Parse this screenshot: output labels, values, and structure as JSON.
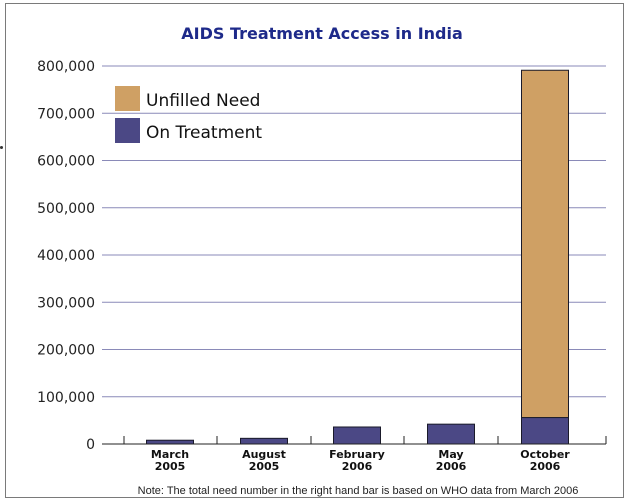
{
  "chart_data": {
    "type": "bar",
    "stacked": true,
    "title": "AIDS Treatment Access in India",
    "categories": [
      [
        "March",
        "2005"
      ],
      [
        "August",
        "2005"
      ],
      [
        "February",
        "2006"
      ],
      [
        "May",
        "2006"
      ],
      [
        "October",
        "2006"
      ]
    ],
    "series": [
      {
        "name": "On Treatment",
        "color": "#4b4885",
        "values": [
          8000,
          12000,
          36000,
          42000,
          56000
        ]
      },
      {
        "name": "Unfilled Need",
        "color": "#cfa064",
        "values": [
          0,
          0,
          0,
          0,
          735000
        ]
      }
    ],
    "yticks": [
      "0",
      "100,000",
      "200,000",
      "300,000",
      "400,000",
      "500,000",
      "600,000",
      "700,000",
      "800,000"
    ],
    "ylim": [
      0,
      800000
    ],
    "grid": true,
    "legend": "top-left",
    "note": "Note: The total need number in the right hand bar is based on WHO data from March 2006"
  }
}
